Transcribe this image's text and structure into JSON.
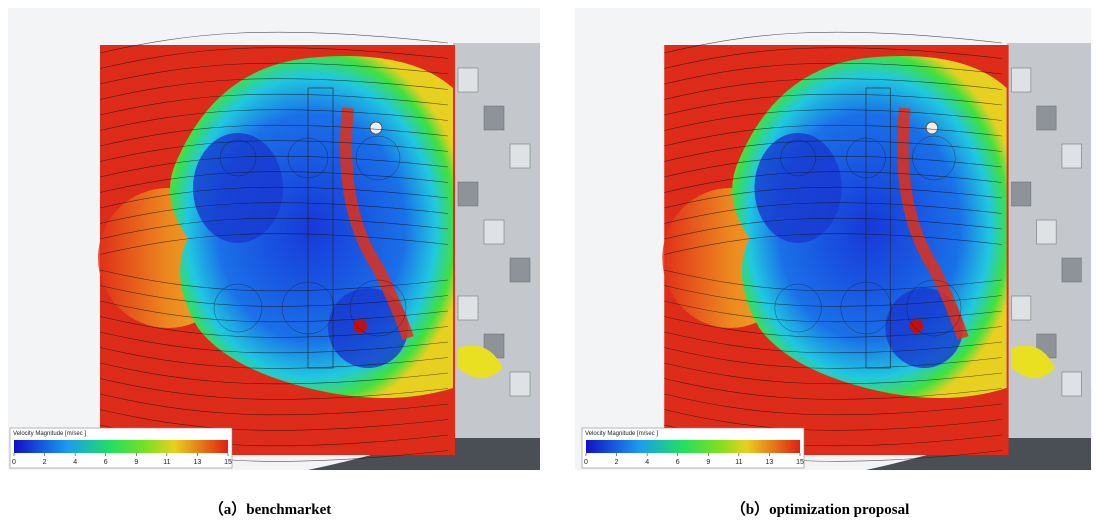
{
  "panels": [
    {
      "legend": {
        "title": "Velocity Magnitude [m/sec ]",
        "ticks": [
          0,
          2,
          4,
          6,
          9,
          11,
          13,
          15
        ]
      },
      "caption": "（a）benchmarket"
    },
    {
      "legend": {
        "title": "Velocity Magnitude [m/sec ]",
        "ticks": [
          0,
          2,
          4,
          6,
          9,
          11,
          13,
          15
        ]
      },
      "caption": "（b）optimization proposal"
    }
  ]
}
